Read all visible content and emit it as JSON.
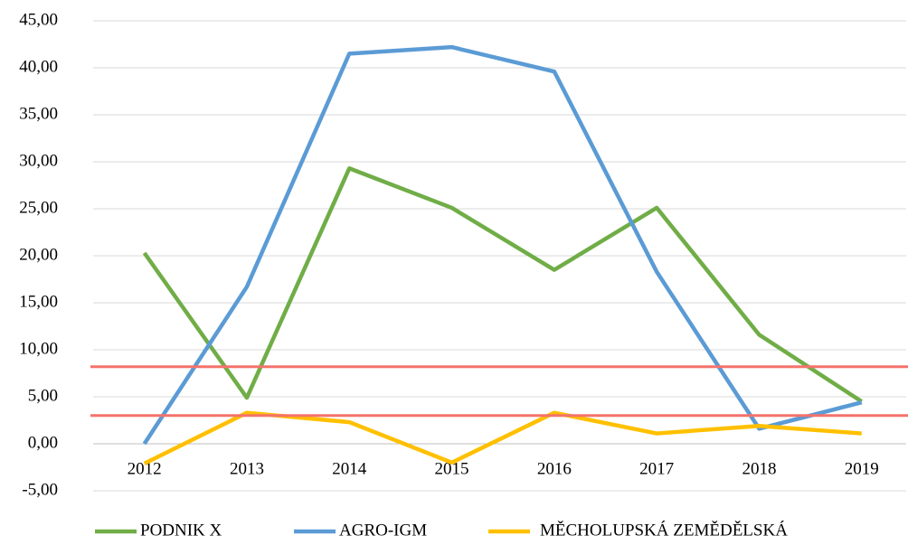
{
  "chart_data": {
    "type": "line",
    "categories": [
      "2012",
      "2013",
      "2014",
      "2015",
      "2016",
      "2017",
      "2018",
      "2019"
    ],
    "series": [
      {
        "name": "PODNIK X",
        "color": "#70ad47",
        "values": [
          20.3,
          4.9,
          29.3,
          25.1,
          18.5,
          25.1,
          11.6,
          4.5
        ]
      },
      {
        "name": "AGRO-IGM",
        "color": "#5b9bd5",
        "values": [
          0.0,
          16.7,
          41.5,
          42.2,
          39.6,
          18.3,
          1.6,
          4.4
        ]
      },
      {
        "name": "MĚCHOLUPSKÁ ZEMĚDĚLSKÁ",
        "color": "#ffc000",
        "values": [
          -2.1,
          3.3,
          2.3,
          -2.0,
          3.3,
          1.1,
          1.9,
          1.1
        ]
      }
    ],
    "ylim": [
      -5,
      45
    ],
    "yticks": [
      {
        "value": -5,
        "label": "-5,00"
      },
      {
        "value": 0,
        "label": "0,00"
      },
      {
        "value": 5,
        "label": "5,00"
      },
      {
        "value": 10,
        "label": "10,00"
      },
      {
        "value": 15,
        "label": "15,00"
      },
      {
        "value": 20,
        "label": "20,00"
      },
      {
        "value": 25,
        "label": "25,00"
      },
      {
        "value": 30,
        "label": "30,00"
      },
      {
        "value": 35,
        "label": "35,00"
      },
      {
        "value": 40,
        "label": "40,00"
      },
      {
        "value": 45,
        "label": "45,00"
      }
    ],
    "grid": true,
    "reference_lines": [
      8.2,
      3.0
    ],
    "reference_color": "#f4736b",
    "legend": "bottom"
  }
}
